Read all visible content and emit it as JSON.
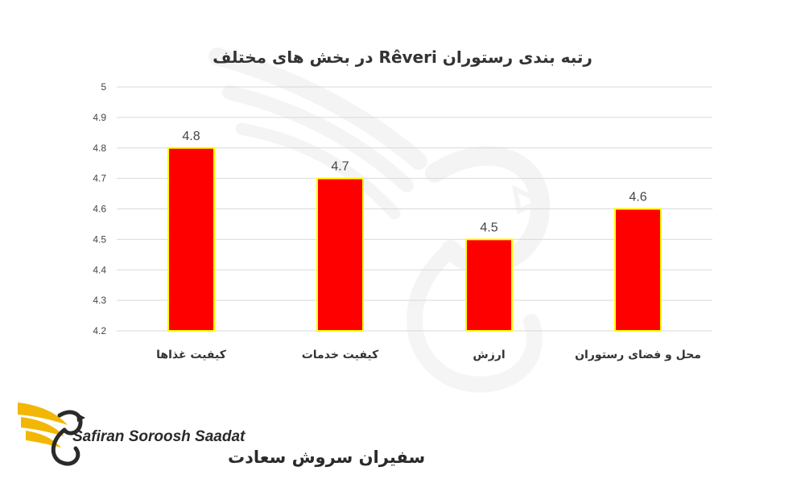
{
  "chart_data": {
    "type": "bar",
    "title": "رتبه بندی رستوران Rêveri در بخش های مختلف",
    "categories": [
      "کیفیت غذاها",
      "کیفیت خدمات",
      "ارزش",
      "محل و فضای رستوران"
    ],
    "values": [
      4.8,
      4.7,
      4.5,
      4.6
    ],
    "data_labels": [
      "4.8",
      "4.7",
      "4.5",
      "4.6"
    ],
    "ylim": [
      4.2,
      5
    ],
    "yticks": [
      "4.2",
      "4.3",
      "4.4",
      "4.5",
      "4.6",
      "4.7",
      "4.8",
      "4.9",
      "5"
    ],
    "grid": true,
    "legend": "none",
    "bar_color": "#ff0000",
    "bar_border_color": "#ffff00",
    "grid_color": "#d9d9d9"
  },
  "logo": {
    "text_latin": "Safiran Soroosh Saadat",
    "text_fa": "سفیران سروش سعادت",
    "accent_color": "#f2b705",
    "dark_color": "#2a2a2a",
    "icon": "eagle-wing-icon"
  },
  "watermark": {
    "icon": "eagle-watermark-icon"
  }
}
